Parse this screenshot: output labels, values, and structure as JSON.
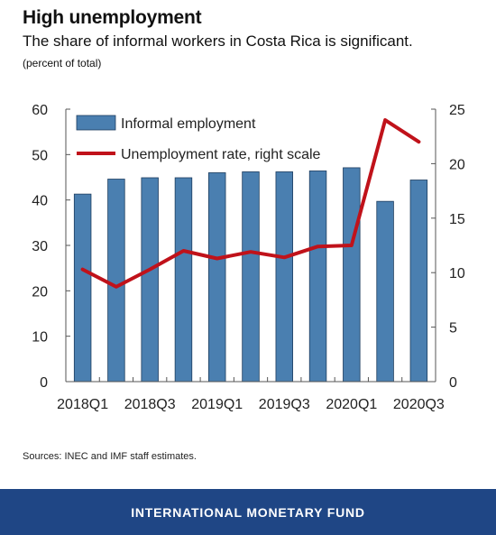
{
  "header": {
    "title": "High unemployment",
    "subtitle": "The share of informal workers in Costa Rica is significant.",
    "unit_note": "(percent of total)"
  },
  "source": "Sources: INEC and IMF staff estimates.",
  "footer": {
    "org_name": "INTERNATIONAL MONETARY FUND"
  },
  "chart_data": {
    "type": "bar",
    "categories": [
      "2018Q1",
      "2018Q2",
      "2018Q3",
      "2018Q4",
      "2019Q1",
      "2019Q2",
      "2019Q3",
      "2019Q4",
      "2020Q1",
      "2020Q2",
      "2020Q3"
    ],
    "x_tick_labels": [
      "2018Q1",
      "2018Q3",
      "2019Q1",
      "2019Q3",
      "2020Q1",
      "2020Q3"
    ],
    "left_axis": {
      "ylim": [
        0,
        60
      ],
      "ticks": [
        0,
        10,
        20,
        30,
        40,
        50,
        60
      ]
    },
    "right_axis": {
      "ylim": [
        0,
        25
      ],
      "ticks": [
        0,
        5,
        10,
        15,
        20,
        25
      ]
    },
    "series": [
      {
        "name": "Informal employment",
        "type": "bar",
        "axis": "left",
        "color": "#4a7fb0",
        "values": [
          41.3,
          44.6,
          44.9,
          44.9,
          46.0,
          46.2,
          46.2,
          46.4,
          47.1,
          39.7,
          44.4
        ]
      },
      {
        "name": "Unemployment rate, right scale",
        "type": "line",
        "axis": "right",
        "color": "#c0121a",
        "values": [
          10.3,
          8.7,
          10.3,
          12.0,
          11.3,
          11.9,
          11.4,
          12.4,
          12.5,
          24.0,
          22.0
        ]
      }
    ],
    "legend_position": "top-left",
    "grid": false
  }
}
